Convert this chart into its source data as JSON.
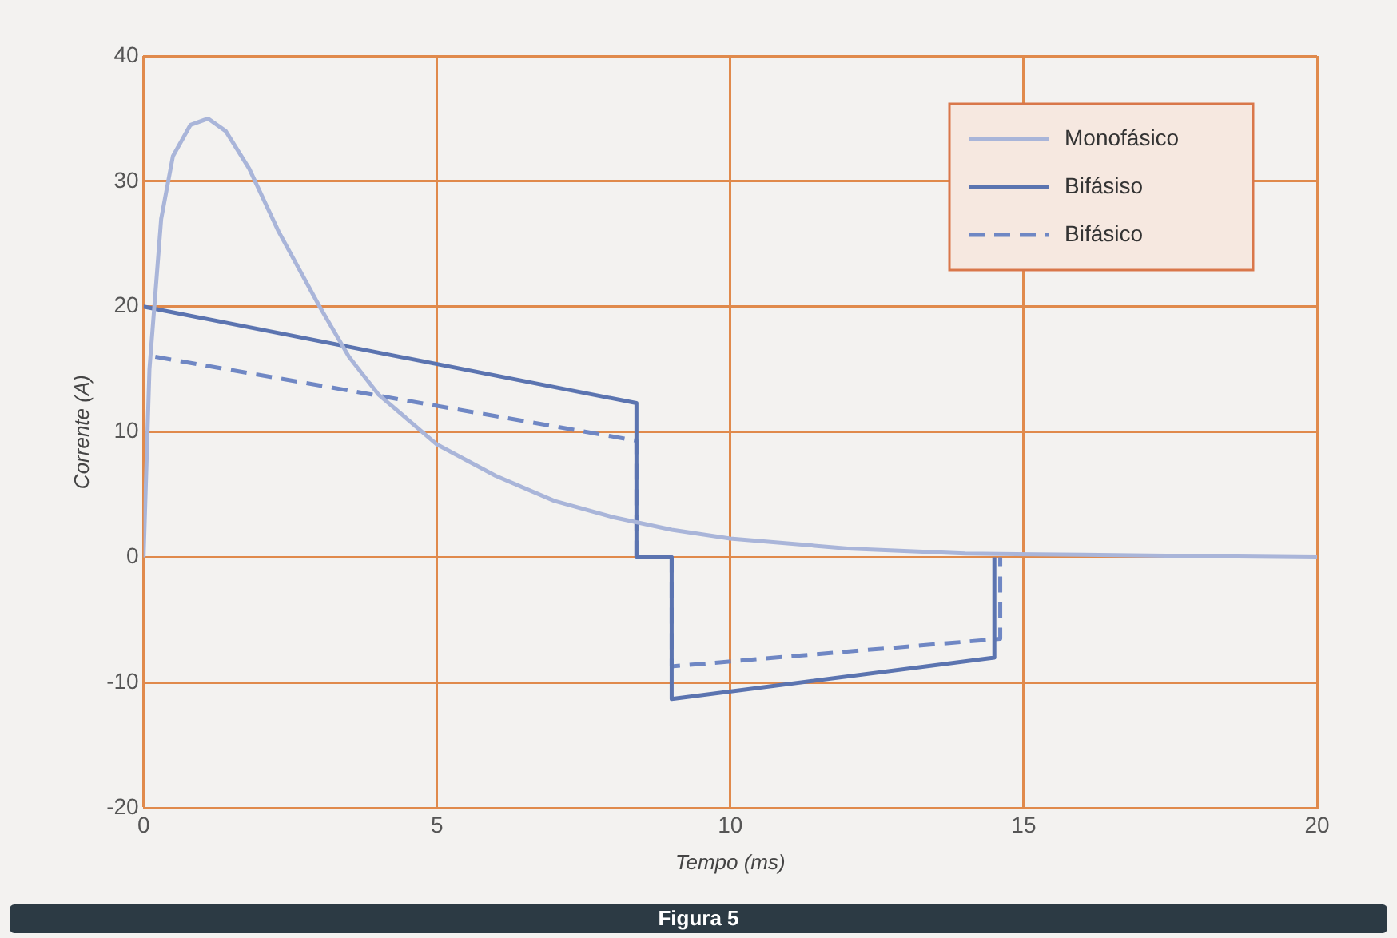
{
  "chart_data": {
    "type": "line",
    "title": "Figura 5",
    "xlabel": "Tempo (ms)",
    "ylabel": "Corrente (A)",
    "xlim": [
      0,
      20
    ],
    "xticks": [
      0,
      5,
      10,
      15,
      20
    ],
    "ylim": [
      -20,
      40
    ],
    "yticks": [
      -20,
      -10,
      0,
      10,
      20,
      30,
      40
    ],
    "grid": true,
    "legend": "top right",
    "marker": "none",
    "series": [
      {
        "name": "Monofásico",
        "color": "#a9b5d9",
        "line_style": "solid",
        "x": [
          0,
          0.1,
          0.3,
          0.5,
          0.8,
          1.1,
          1.4,
          1.8,
          2.3,
          3,
          3.5,
          4,
          5,
          6,
          7,
          8,
          9,
          10,
          12,
          14,
          16,
          18,
          20
        ],
        "values": [
          0,
          15,
          27,
          32,
          34.5,
          35,
          34,
          31,
          26,
          20,
          16,
          13,
          9,
          6.5,
          4.5,
          3.2,
          2.2,
          1.5,
          0.7,
          0.3,
          0.2,
          0.1,
          0
        ]
      },
      {
        "name": "Bifásiso",
        "color": "#5b74b0",
        "line_style": "solid",
        "x": [
          0,
          8.4,
          8.4,
          9,
          9,
          14.5,
          14.5
        ],
        "values": [
          20,
          12.3,
          0,
          0,
          -11.3,
          -8,
          0
        ]
      },
      {
        "name": "Bifásico",
        "color": "#6f87c4",
        "line_style": "dashed",
        "x": [
          0.2,
          8.4,
          8.4,
          9,
          9,
          14.6,
          14.6
        ],
        "values": [
          16,
          9.3,
          0,
          0,
          -8.7,
          -6.5,
          0
        ]
      }
    ]
  }
}
